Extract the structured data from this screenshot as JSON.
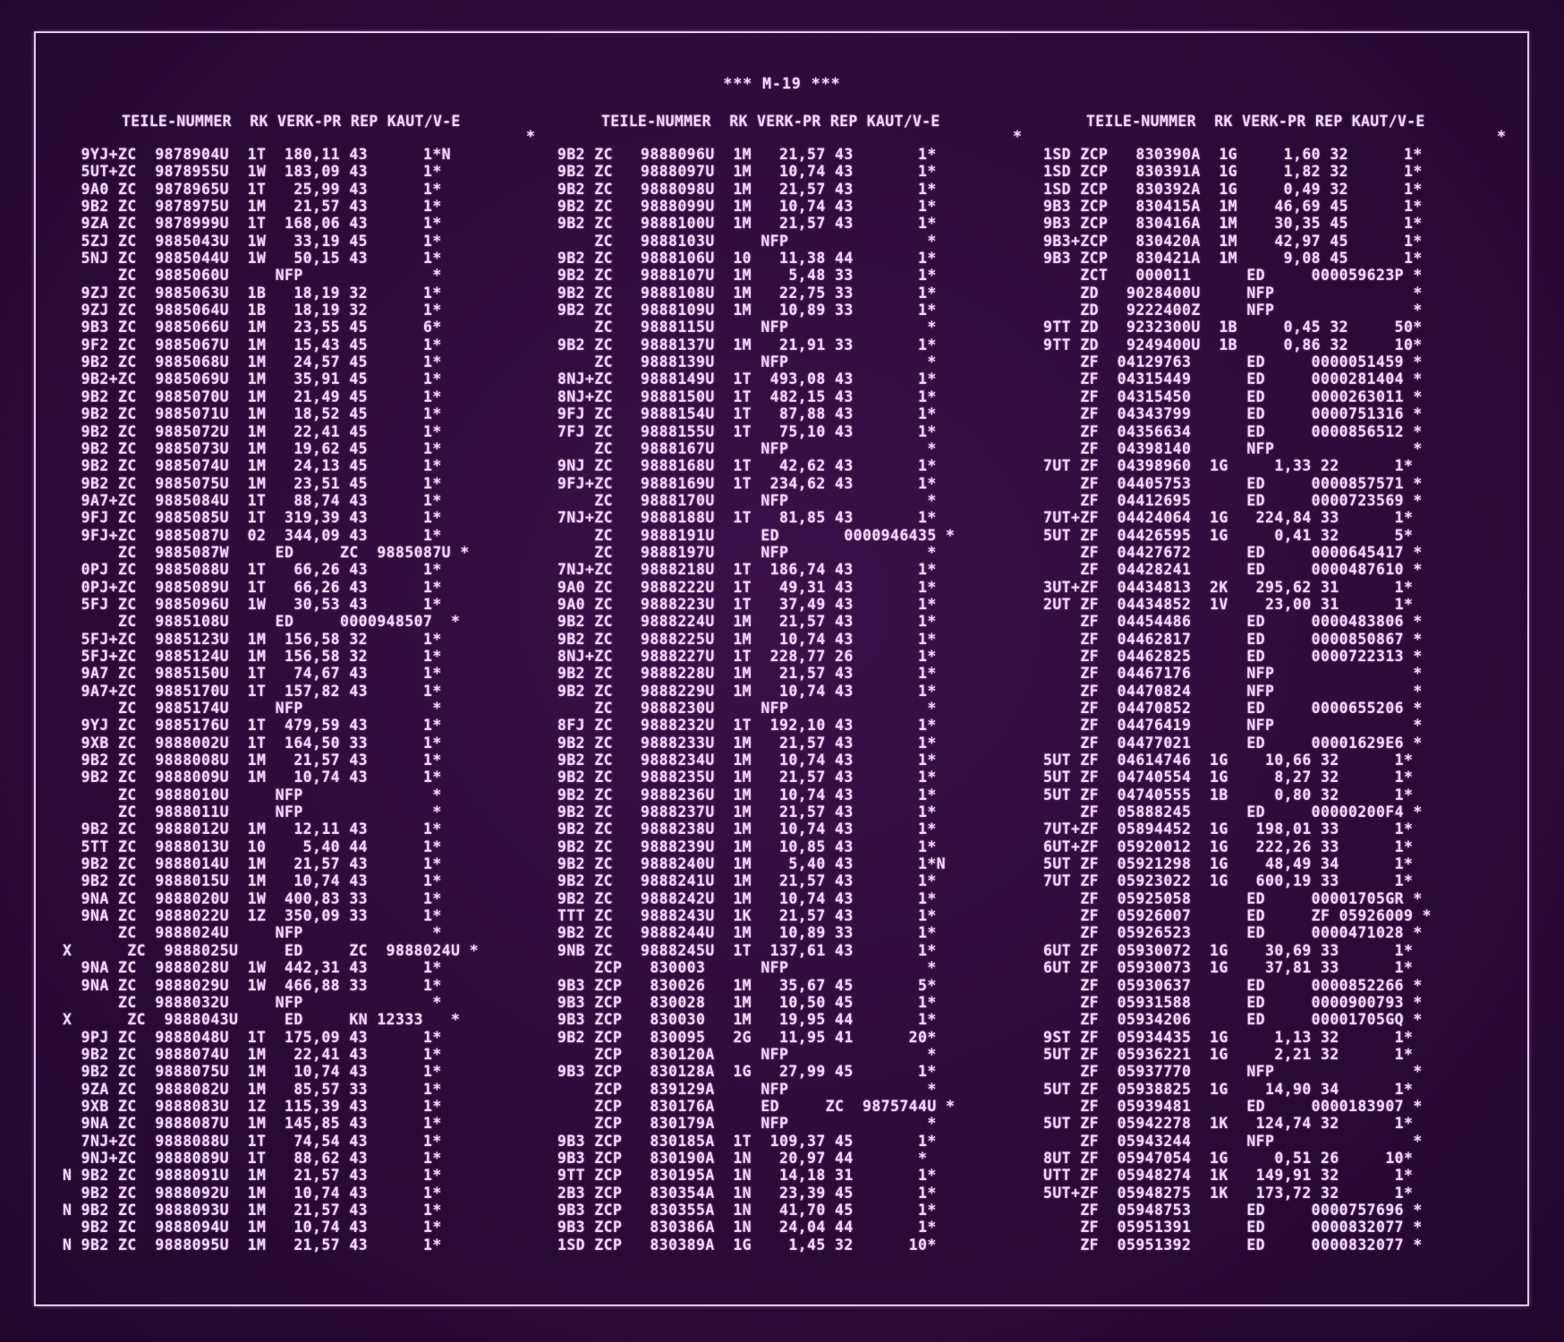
{
  "title": "*** M-19 ***",
  "header": "TEILE-NUMMER  RK VERK-PR REP KAUT/V-E",
  "columns": [
    [
      "  9YJ+ZC  9878904U  1T  180,11 43      1*N",
      "  5UT+ZC  9878955U  1W  183,09 43      1*",
      "  9A0 ZC  9878965U  1T   25,99 43      1*",
      "  9B2 ZC  9878975U  1M   21,57 43      1*",
      "  9ZA ZC  9878999U  1T  168,06 43      1*",
      "  5ZJ ZC  9885043U  1W   33,19 45      1*",
      "  5NJ ZC  9885044U  1W   50,15 43      1*",
      "      ZC  9885060U     NFP              *",
      "  9ZJ ZC  9885063U  1B   18,19 32      1*",
      "  9ZJ ZC  9885064U  1B   18,19 32      1*",
      "  9B3 ZC  9885066U  1M   23,55 45      6*",
      "  9F2 ZC  9885067U  1M   15,43 45      1*",
      "  9B2 ZC  9885068U  1M   24,57 45      1*",
      "  9B2+ZC  9885069U  1M   35,91 45      1*",
      "  9B2 ZC  9885070U  1M   21,49 45      1*",
      "  9B2 ZC  9885071U  1M   18,52 45      1*",
      "  9B2 ZC  9885072U  1M   22,41 45      1*",
      "  9B2 ZC  9885073U  1M   19,62 45      1*",
      "  9B2 ZC  9885074U  1M   24,13 45      1*",
      "  9B2 ZC  9885075U  1M   23,51 45      1*",
      "  9A7+ZC  9885084U  1T   88,74 43      1*",
      "  9FJ ZC  9885085U  1T  319,39 43      1*",
      "  9FJ+ZC  9885087U  02  344,09 43      1*",
      "      ZC  9885087W     ED     ZC  9885087U *",
      "  0PJ ZC  9885088U  1T   66,26 43      1*",
      "  0PJ+ZC  9885089U  1T   66,26 43      1*",
      "  5FJ ZC  9885096U  1W   30,53 43      1*",
      "      ZC  9885108U     ED     0000948507  *",
      "  5FJ+ZC  9885123U  1M  156,58 32      1*",
      "  5FJ+ZC  9885124U  1M  156,58 32      1*",
      "  9A7 ZC  9885150U  1T   74,67 43      1*",
      "  9A7+ZC  9885170U  1T  157,82 43      1*",
      "      ZC  9885174U     NFP              *",
      "  9YJ ZC  9885176U  1T  479,59 43      1*",
      "  9XB ZC  9888002U  1T  164,50 33      1*",
      "  9B2 ZC  9888008U  1M   21,57 43      1*",
      "  9B2 ZC  9888009U  1M   10,74 43      1*",
      "      ZC  9888010U     NFP              *",
      "      ZC  9888011U     NFP              *",
      "  9B2 ZC  9888012U  1M   12,11 43      1*",
      "  5TT ZC  9888013U  10    5,40 44      1*",
      "  9B2 ZC  9888014U  1M   21,57 43      1*",
      "  9B2 ZC  9888015U  1M   10,74 43      1*",
      "  9NA ZC  9888020U  1W  400,83 33      1*",
      "  9NA ZC  9888022U  1Z  350,09 33      1*",
      "      ZC  9888024U     NFP              *",
      "X      ZC  9888025U     ED     ZC  9888024U *",
      "  9NA ZC  9888028U  1W  442,31 43      1*",
      "  9NA ZC  9888029U  1W  466,88 33      1*",
      "      ZC  9888032U     NFP              *",
      "X      ZC  9888043U     ED     KN 12333   *",
      "  9PJ ZC  9888048U  1T  175,09 43      1*",
      "  9B2 ZC  9888074U  1M   22,41 43      1*",
      "  9B2 ZC  9888075U  1M   10,74 43      1*",
      "  9ZA ZC  9888082U  1M   85,57 33      1*",
      "  9XB ZC  9888083U  1Z  115,39 43      1*",
      "  9NA ZC  9888087U  1M  145,85 43      1*",
      "  7NJ+ZC  9888088U  1T   74,54 43      1*",
      "  9NJ+ZC  9888089U  1T   88,62 43      1*",
      "N 9B2 ZC  9888091U  1M   21,57 43      1*",
      "  9B2 ZC  9888092U  1M   10,74 43      1*",
      "N 9B2 ZC  9888093U  1M   21,57 43      1*",
      "  9B2 ZC  9888094U  1M   10,74 43      1*",
      "N 9B2 ZC  9888095U  1M   21,57 43      1*"
    ],
    [
      "9B2 ZC   9888096U  1M   21,57 43       1*",
      "9B2 ZC   9888097U  1M   10,74 43       1*",
      "9B2 ZC   9888098U  1M   21,57 43       1*",
      "9B2 ZC   9888099U  1M   10,74 43       1*",
      "9B2 ZC   9888100U  1M   21,57 43       1*",
      "    ZC   9888103U     NFP               *",
      "9B2 ZC   9888106U  10   11,38 44       1*",
      "9B2 ZC   9888107U  1M    5,48 33       1*",
      "9B2 ZC   9888108U  1M   22,75 33       1*",
      "9B2 ZC   9888109U  1M   10,89 33       1*",
      "    ZC   9888115U     NFP               *",
      "9B2 ZC   9888137U  1M   21,91 33       1*",
      "    ZC   9888139U     NFP               *",
      "8NJ+ZC   9888149U  1T  493,08 43       1*",
      "8NJ+ZC   9888150U  1T  482,15 43       1*",
      "9FJ ZC   9888154U  1T   87,88 43       1*",
      "7FJ ZC   9888155U  1T   75,10 43       1*",
      "    ZC   9888167U     NFP               *",
      "9NJ ZC   9888168U  1T   42,62 43       1*",
      "9FJ+ZC   9888169U  1T  234,62 43       1*",
      "    ZC   9888170U     NFP               *",
      "7NJ+ZC   9888188U  1T   81,85 43       1*",
      "    ZC   9888191U     ED       0000946435 *",
      "    ZC   9888197U     NFP               *",
      "7NJ+ZC   9888218U  1T  186,74 43       1*",
      "9A0 ZC   9888222U  1T   49,31 43       1*",
      "9A0 ZC   9888223U  1T   37,49 43       1*",
      "9B2 ZC   9888224U  1M   21,57 43       1*",
      "9B2 ZC   9888225U  1M   10,74 43       1*",
      "8NJ+ZC   9888227U  1T  228,77 26       1*",
      "9B2 ZC   9888228U  1M   21,57 43       1*",
      "9B2 ZC   9888229U  1M   10,74 43       1*",
      "    ZC   9888230U     NFP               *",
      "8FJ ZC   9888232U  1T  192,10 43       1*",
      "9B2 ZC   9888233U  1M   21,57 43       1*",
      "9B2 ZC   9888234U  1M   10,74 43       1*",
      "9B2 ZC   9888235U  1M   21,57 43       1*",
      "9B2 ZC   9888236U  1M   10,74 43       1*",
      "9B2 ZC   9888237U  1M   21,57 43       1*",
      "9B2 ZC   9888238U  1M   10,74 43       1*",
      "9B2 ZC   9888239U  1M   10,85 43       1*",
      "9B2 ZC   9888240U  1M    5,40 43       1*N",
      "9B2 ZC   9888241U  1M   21,57 43       1*",
      "9B2 ZC   9888242U  1M   10,74 43       1*",
      "TTT ZC   9888243U  1K   21,57 43       1*",
      "9B2 ZC   9888244U  1M   10,89 33       1*",
      "9NB ZC   9888245U  1T  137,61 43       1*",
      "    ZCP   830003      NFP               *",
      "9B3 ZCP   830026   1M   35,67 45       5*",
      "9B3 ZCP   830028   1M   10,50 45       1*",
      "9B3 ZCP   830030   1M   19,95 44       1*",
      "9B2 ZCP   830095   2G   11,95 41      20*",
      "    ZCP   830120A     NFP               *",
      "9B3 ZCP   830128A  1G   27,99 45       1*",
      "    ZCP   839129A     NFP               *",
      "    ZCP   830176A     ED     ZC  9875744U *",
      "    ZCP   830179A     NFP               *",
      "9B3 ZCP   830185A  1T  109,37 45       1*",
      "9B3 ZCP   830190A  1N   20,97 44       *",
      "9TT ZCP   830195A  1N   14,18 31       1*",
      "2B3 ZCP   830354A  1N   23,39 45       1*",
      "9B3 ZCP   830355A  1N   41,70 45       1*",
      "9B3 ZCP   830386A  1N   24,04 44       1*",
      "1SD ZCP   830389A  1G    1,45 32      10*"
    ],
    [
      "1SD ZCP   830390A  1G     1,60 32      1*",
      "1SD ZCP   830391A  1G     1,82 32      1*",
      "1SD ZCP   830392A  1G     0,49 32      1*",
      "9B3 ZCP   830415A  1M    46,69 45      1*",
      "9B3 ZCP   830416A  1M    30,35 45      1*",
      "9B3+ZCP   830420A  1M    42,97 45      1*",
      "9B3 ZCP   830421A  1M     9,08 45      1*",
      "    ZCT   000011      ED     000059623P *",
      "    ZD   9028400U     NFP               *",
      "    ZD   9222400Z     NFP               *",
      "9TT ZD   9232300U  1B     0,45 32     50*",
      "9TT ZD   9249400U  1B     0,86 32     10*",
      "    ZF  04129763      ED     0000051459 *",
      "    ZF  04315449      ED     0000281404 *",
      "    ZF  04315450      ED     0000263011 *",
      "    ZF  04343799      ED     0000751316 *",
      "    ZF  04356634      ED     0000856512 *",
      "    ZF  04398140      NFP               *",
      "7UT ZF  04398960  1G     1,33 22      1*",
      "    ZF  04405753      ED     0000857571 *",
      "    ZF  04412695      ED     0000723569 *",
      "7UT+ZF  04424064  1G   224,84 33      1*",
      "5UT ZF  04426595  1G     0,41 32      5*",
      "    ZF  04427672      ED     0000645417 *",
      "    ZF  04428241      ED     0000487610 *",
      "3UT+ZF  04434813  2K   295,62 31      1*",
      "2UT ZF  04434852  1V    23,00 31      1*",
      "    ZF  04454486      ED     0000483806 *",
      "    ZF  04462817      ED     0000850867 *",
      "    ZF  04462825      ED     0000722313 *",
      "    ZF  04467176      NFP               *",
      "    ZF  04470824      NFP               *",
      "    ZF  04470852      ED     0000655206 *",
      "    ZF  04476419      NFP               *",
      "    ZF  04477021      ED     00001629E6 *",
      "5UT ZF  04614746  1G    10,66 32      1*",
      "5UT ZF  04740554  1G     8,27 32      1*",
      "5UT ZF  04740555  1B     0,80 32      1*",
      "    ZF  05888245      ED     00000200F4 *",
      "7UT+ZF  05894452  1G   198,01 33      1*",
      "6UT+ZF  05920012  1G   222,26 33      1*",
      "5UT ZF  05921298  1G    48,49 34      1*",
      "7UT ZF  05923022  1G   600,19 33      1*",
      "    ZF  05925058      ED     00001705GR *",
      "    ZF  05926007      ED     ZF 05926009 *",
      "    ZF  05926523      ED     0000471028 *",
      "6UT ZF  05930072  1G    30,69 33      1*",
      "6UT ZF  05930073  1G    37,81 33      1*",
      "    ZF  05930637      ED     0000852266 *",
      "    ZF  05931588      ED     0000900793 *",
      "    ZF  05934206      ED     00001705GQ *",
      "9ST ZF  05934435  1G     1,13 32      1*",
      "5UT ZF  05936221  1G     2,21 32      1*",
      "    ZF  05937770      NFP               *",
      "5UT ZF  05938825  1G    14,90 34      1*",
      "    ZF  05939481      ED     0000183907 *",
      "5UT ZF  05942278  1K   124,74 32      1*",
      "    ZF  05943244      NFP               *",
      "8UT ZF  05947054  1G     0,51 26     10*",
      "UTT ZF  05948274  1K   149,91 32      1*",
      "5UT+ZF  05948275  1K   173,72 32      1*",
      "    ZF  05948753      ED     0000757696 *",
      "    ZF  05951391      ED     0000832077 *",
      "    ZF  05951392      ED     0000832077 *"
    ]
  ]
}
